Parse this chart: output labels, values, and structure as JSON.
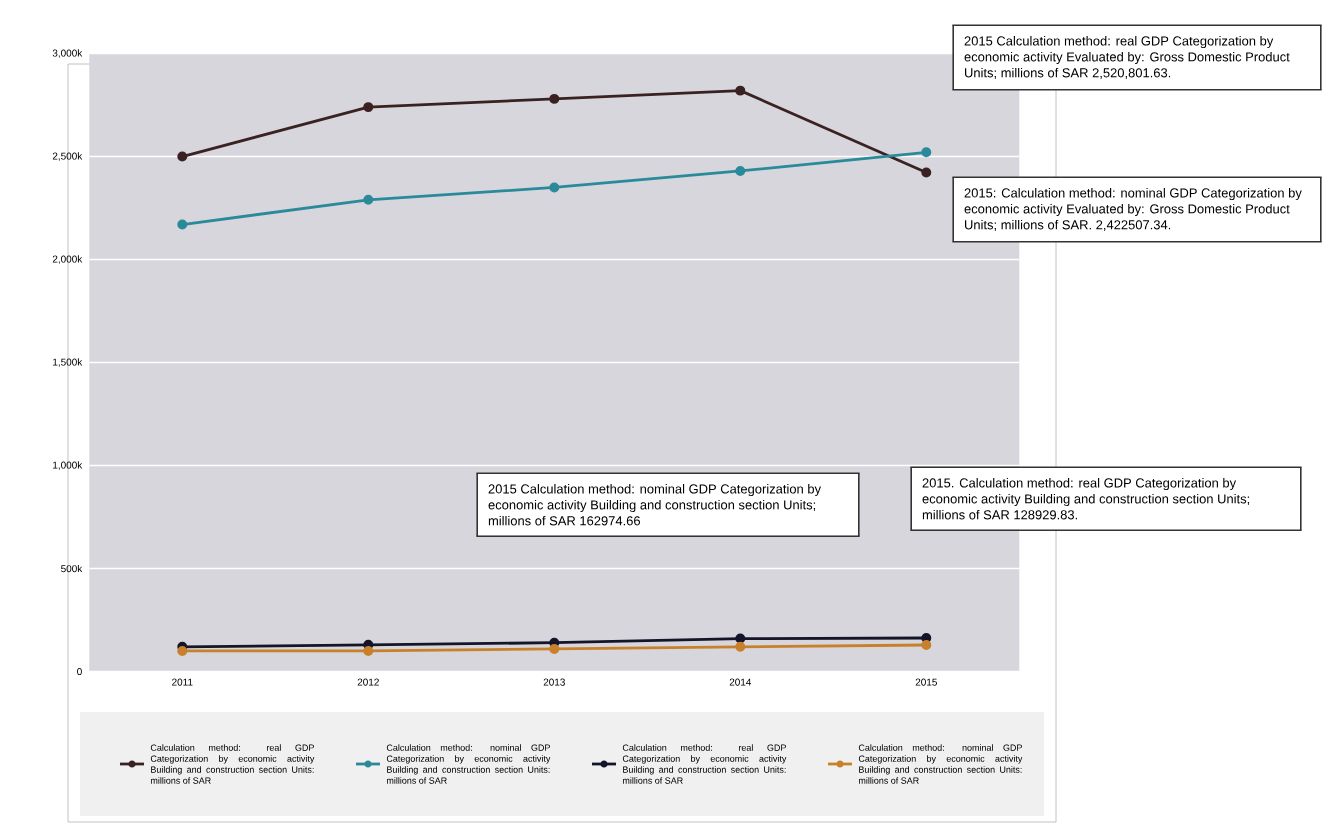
{
  "chart_data": {
    "type": "line",
    "categories": [
      "2011",
      "2012",
      "2013",
      "2014",
      "2015"
    ],
    "series": [
      {
        "name": "Calculation method: real GDP Categorization by economic activity Building and construction section Units: millions of SAR",
        "color": "#3b2222",
        "values": [
          2500000,
          2740000,
          2780000,
          2820000,
          2422507.34
        ]
      },
      {
        "name": "Calculation method: nominal GDP Categorization by economic activity Building and construction section Units: millions of SAR",
        "color": "#2a8a9a",
        "values": [
          2170000,
          2290000,
          2350000,
          2430000,
          2520801.63
        ]
      },
      {
        "name": "Calculation method: real GDP Categorization by economic activity Building and construction section Units: millions of SAR",
        "color": "#15152a",
        "values": [
          120000,
          130000,
          140000,
          160000,
          162974.66
        ]
      },
      {
        "name": "Calculation method: nominal GDP Categorization by economic activity Building and construction section Units: millions of SAR",
        "color": "#c8802a",
        "values": [
          100000,
          100000,
          110000,
          120000,
          128929.83
        ]
      }
    ],
    "ylim": [
      0,
      3000000
    ],
    "yticks": [
      {
        "value": 0,
        "label": "0"
      },
      {
        "value": 500000,
        "label": "500k"
      },
      {
        "value": 1000000,
        "label": "1,000k"
      },
      {
        "value": 1500000,
        "label": "1,500k"
      },
      {
        "value": 2000000,
        "label": "2,000k"
      },
      {
        "value": 2500000,
        "label": "2,500k"
      },
      {
        "value": 3000000,
        "label": "3,000k"
      }
    ],
    "grid": "y",
    "legend": "bottom",
    "marker": "circle",
    "annotations": [
      "2015 Calculation method: real GDP Categorization by economic activity Evaluated by: Gross Domestic Product Units; millions of SAR 2,520,801.63.",
      "2015: Calculation method: nominal GDP Categorization by economic activity Evaluated by: Gross Domestic Product Units; millions of SAR. 2,422507.34.",
      "2015 Calculation method: nominal GDP Categorization by economic activity Building and construction section Units; millions of SAR 162974.66",
      "2015. Calculation method: real GDP Categorization by economic activity Building and construction section Units; millions of SAR 128929.83."
    ]
  }
}
